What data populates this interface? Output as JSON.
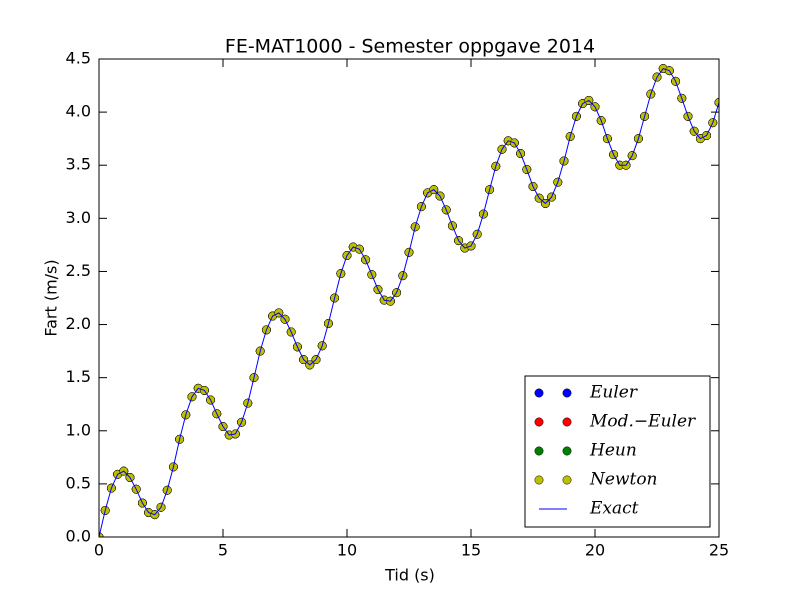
{
  "chart_data": {
    "type": "line",
    "title": "FE-MAT1000 - Semester oppgave 2014",
    "x_label": "Tid (s)",
    "y_label": "Fart (m/s)",
    "xlim": [
      0,
      25
    ],
    "ylim": [
      0,
      4.5
    ],
    "xticks": [
      0,
      5,
      10,
      15,
      20,
      25
    ],
    "yticks": [
      {
        "value": 0,
        "label": "0.0"
      },
      {
        "value": 0.5,
        "label": "0.5"
      },
      {
        "value": 1,
        "label": "1.0"
      },
      {
        "value": 1.5,
        "label": "1.5"
      },
      {
        "value": 2,
        "label": "2.0"
      },
      {
        "value": 2.5,
        "label": "2.5"
      },
      {
        "value": 3,
        "label": "3.0"
      },
      {
        "value": 3.5,
        "label": "3.5"
      },
      {
        "value": 4,
        "label": "4.0"
      },
      {
        "value": 4.5,
        "label": "4.5"
      }
    ],
    "grid": false,
    "legend": "lower right",
    "x": [
      0,
      0.25,
      0.5,
      0.75,
      1,
      1.25,
      1.5,
      1.75,
      2,
      2.25,
      2.5,
      2.75,
      3,
      3.25,
      3.5,
      3.75,
      4,
      4.25,
      4.5,
      4.75,
      5,
      5.25,
      5.5,
      5.75,
      6,
      6.25,
      6.5,
      6.75,
      7,
      7.25,
      7.5,
      7.75,
      8,
      8.25,
      8.5,
      8.75,
      9,
      9.25,
      9.5,
      9.75,
      10,
      10.25,
      10.5,
      10.75,
      11,
      11.25,
      11.5,
      11.75,
      12,
      12.25,
      12.5,
      12.75,
      13,
      13.25,
      13.5,
      13.75,
      14,
      14.25,
      14.5,
      14.75,
      15,
      15.25,
      15.5,
      15.75,
      16,
      16.25,
      16.5,
      16.75,
      17,
      17.25,
      17.5,
      17.75,
      18,
      18.25,
      18.5,
      18.75,
      19,
      19.25,
      19.5,
      19.75,
      20,
      20.25,
      20.5,
      20.75,
      21,
      21.25,
      21.5,
      21.75,
      22,
      22.25,
      22.5,
      22.75,
      23,
      23.25,
      23.5,
      23.75,
      24,
      24.25,
      24.5,
      24.75,
      25
    ],
    "series": [
      {
        "name": "Euler",
        "color": "#0000ff",
        "style": "markers",
        "values": [
          0,
          0.25,
          0.46,
          0.59,
          0.62,
          0.56,
          0.45,
          0.32,
          0.23,
          0.21,
          0.28,
          0.44,
          0.66,
          0.92,
          1.15,
          1.32,
          1.4,
          1.38,
          1.29,
          1.16,
          1.04,
          0.96,
          0.97,
          1.08,
          1.26,
          1.5,
          1.75,
          1.95,
          2.08,
          2.11,
          2.05,
          1.93,
          1.79,
          1.67,
          1.62,
          1.67,
          1.8,
          2.01,
          2.25,
          2.48,
          2.65,
          2.73,
          2.71,
          2.61,
          2.47,
          2.33,
          2.23,
          2.22,
          2.3,
          2.46,
          2.68,
          2.92,
          3.11,
          3.24,
          3.27,
          3.21,
          3.08,
          2.93,
          2.79,
          2.72,
          2.74,
          2.85,
          3.04,
          3.27,
          3.49,
          3.65,
          3.73,
          3.71,
          3.61,
          3.46,
          3.3,
          3.19,
          3.14,
          3.2,
          3.34,
          3.54,
          3.77,
          3.96,
          4.08,
          4.11,
          4.05,
          3.92,
          3.75,
          3.6,
          3.5,
          3.5,
          3.59,
          3.75,
          3.96,
          4.17,
          4.33,
          4.41,
          4.39,
          4.29,
          4.13,
          3.96,
          3.82,
          3.75,
          3.78,
          3.9,
          4.09
        ]
      },
      {
        "name": "Mod.−Euler",
        "color": "#ff0000",
        "style": "markers",
        "values": [
          0,
          0.25,
          0.46,
          0.59,
          0.62,
          0.56,
          0.45,
          0.32,
          0.23,
          0.21,
          0.28,
          0.44,
          0.66,
          0.92,
          1.15,
          1.32,
          1.4,
          1.38,
          1.29,
          1.16,
          1.04,
          0.96,
          0.97,
          1.08,
          1.26,
          1.5,
          1.75,
          1.95,
          2.08,
          2.11,
          2.05,
          1.93,
          1.79,
          1.67,
          1.62,
          1.67,
          1.8,
          2.01,
          2.25,
          2.48,
          2.65,
          2.73,
          2.71,
          2.61,
          2.47,
          2.33,
          2.23,
          2.22,
          2.3,
          2.46,
          2.68,
          2.92,
          3.11,
          3.24,
          3.27,
          3.21,
          3.08,
          2.93,
          2.79,
          2.72,
          2.74,
          2.85,
          3.04,
          3.27,
          3.49,
          3.65,
          3.73,
          3.71,
          3.61,
          3.46,
          3.3,
          3.19,
          3.14,
          3.2,
          3.34,
          3.54,
          3.77,
          3.96,
          4.08,
          4.11,
          4.05,
          3.92,
          3.75,
          3.6,
          3.5,
          3.5,
          3.59,
          3.75,
          3.96,
          4.17,
          4.33,
          4.41,
          4.39,
          4.29,
          4.13,
          3.96,
          3.82,
          3.75,
          3.78,
          3.9,
          4.09
        ]
      },
      {
        "name": "Heun",
        "color": "#008000",
        "style": "markers",
        "values": [
          0,
          0.25,
          0.46,
          0.59,
          0.62,
          0.56,
          0.45,
          0.32,
          0.23,
          0.21,
          0.28,
          0.44,
          0.66,
          0.92,
          1.15,
          1.32,
          1.4,
          1.38,
          1.29,
          1.16,
          1.04,
          0.96,
          0.97,
          1.08,
          1.26,
          1.5,
          1.75,
          1.95,
          2.08,
          2.11,
          2.05,
          1.93,
          1.79,
          1.67,
          1.62,
          1.67,
          1.8,
          2.01,
          2.25,
          2.48,
          2.65,
          2.73,
          2.71,
          2.61,
          2.47,
          2.33,
          2.23,
          2.22,
          2.3,
          2.46,
          2.68,
          2.92,
          3.11,
          3.24,
          3.27,
          3.21,
          3.08,
          2.93,
          2.79,
          2.72,
          2.74,
          2.85,
          3.04,
          3.27,
          3.49,
          3.65,
          3.73,
          3.71,
          3.61,
          3.46,
          3.3,
          3.19,
          3.14,
          3.2,
          3.34,
          3.54,
          3.77,
          3.96,
          4.08,
          4.11,
          4.05,
          3.92,
          3.75,
          3.6,
          3.5,
          3.5,
          3.59,
          3.75,
          3.96,
          4.17,
          4.33,
          4.41,
          4.39,
          4.29,
          4.13,
          3.96,
          3.82,
          3.75,
          3.78,
          3.9,
          4.09
        ]
      },
      {
        "name": "Newton",
        "color": "#bfbf00",
        "style": "markers",
        "values": [
          0,
          0.25,
          0.46,
          0.59,
          0.62,
          0.56,
          0.45,
          0.32,
          0.23,
          0.21,
          0.28,
          0.44,
          0.66,
          0.92,
          1.15,
          1.32,
          1.4,
          1.38,
          1.29,
          1.16,
          1.04,
          0.96,
          0.97,
          1.08,
          1.26,
          1.5,
          1.75,
          1.95,
          2.08,
          2.11,
          2.05,
          1.93,
          1.79,
          1.67,
          1.62,
          1.67,
          1.8,
          2.01,
          2.25,
          2.48,
          2.65,
          2.73,
          2.71,
          2.61,
          2.47,
          2.33,
          2.23,
          2.22,
          2.3,
          2.46,
          2.68,
          2.92,
          3.11,
          3.24,
          3.27,
          3.21,
          3.08,
          2.93,
          2.79,
          2.72,
          2.74,
          2.85,
          3.04,
          3.27,
          3.49,
          3.65,
          3.73,
          3.71,
          3.61,
          3.46,
          3.3,
          3.19,
          3.14,
          3.2,
          3.34,
          3.54,
          3.77,
          3.96,
          4.08,
          4.11,
          4.05,
          3.92,
          3.75,
          3.6,
          3.5,
          3.5,
          3.59,
          3.75,
          3.96,
          4.17,
          4.33,
          4.41,
          4.39,
          4.29,
          4.13,
          3.96,
          3.82,
          3.75,
          3.78,
          3.9,
          4.09
        ]
      },
      {
        "name": "Exact",
        "color": "#0000ff",
        "style": "line",
        "values": [
          0,
          0.25,
          0.46,
          0.59,
          0.62,
          0.56,
          0.45,
          0.32,
          0.23,
          0.21,
          0.28,
          0.44,
          0.66,
          0.92,
          1.15,
          1.32,
          1.4,
          1.38,
          1.29,
          1.16,
          1.04,
          0.96,
          0.97,
          1.08,
          1.26,
          1.5,
          1.75,
          1.95,
          2.08,
          2.11,
          2.05,
          1.93,
          1.79,
          1.67,
          1.62,
          1.67,
          1.8,
          2.01,
          2.25,
          2.48,
          2.65,
          2.73,
          2.71,
          2.61,
          2.47,
          2.33,
          2.23,
          2.22,
          2.3,
          2.46,
          2.68,
          2.92,
          3.11,
          3.24,
          3.27,
          3.21,
          3.08,
          2.93,
          2.79,
          2.72,
          2.74,
          2.85,
          3.04,
          3.27,
          3.49,
          3.65,
          3.73,
          3.71,
          3.61,
          3.46,
          3.3,
          3.19,
          3.14,
          3.2,
          3.34,
          3.54,
          3.77,
          3.96,
          4.08,
          4.11,
          4.05,
          3.92,
          3.75,
          3.6,
          3.5,
          3.5,
          3.59,
          3.75,
          3.96,
          4.17,
          4.33,
          4.41,
          4.39,
          4.29,
          4.13,
          3.96,
          3.82,
          3.75,
          3.78,
          3.9,
          4.09
        ]
      }
    ]
  }
}
